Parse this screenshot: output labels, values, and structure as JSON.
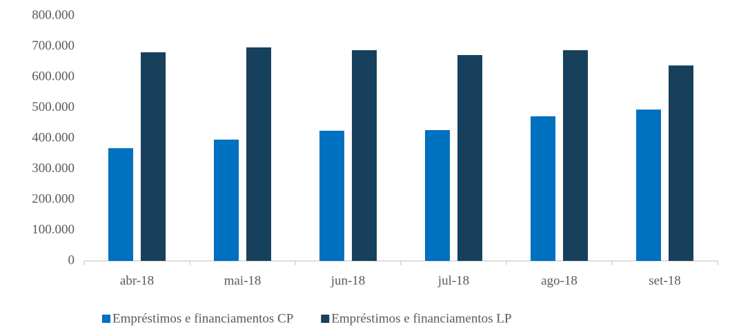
{
  "chart_data": {
    "type": "bar",
    "categories": [
      "abr-18",
      "mai-18",
      "jun-18",
      "jul-18",
      "ago-18",
      "set-18"
    ],
    "series": [
      {
        "name": "Empréstimos e financiamentos CP",
        "color": "#0070c0",
        "values": [
          368000,
          396000,
          425000,
          427000,
          472000,
          494000
        ]
      },
      {
        "name": "Empréstimos e financiamentos LP",
        "color": "#17405c",
        "values": [
          681000,
          697000,
          688000,
          672000,
          688000,
          638000
        ]
      }
    ],
    "ylim": [
      0,
      800000
    ],
    "yticks": [
      0,
      {
        "value": 100000,
        "label": "100.000"
      },
      {
        "value": 200000,
        "label": "200.000"
      },
      {
        "value": 300000,
        "label": "300.000"
      },
      {
        "value": 400000,
        "label": "400.000"
      },
      {
        "value": 500000,
        "label": "500.000"
      },
      {
        "value": 600000,
        "label": "600.000"
      },
      {
        "value": 700000,
        "label": "700.000"
      },
      {
        "value": 800000,
        "label": "800.000"
      }
    ],
    "grid": false,
    "legend": "bottom"
  }
}
